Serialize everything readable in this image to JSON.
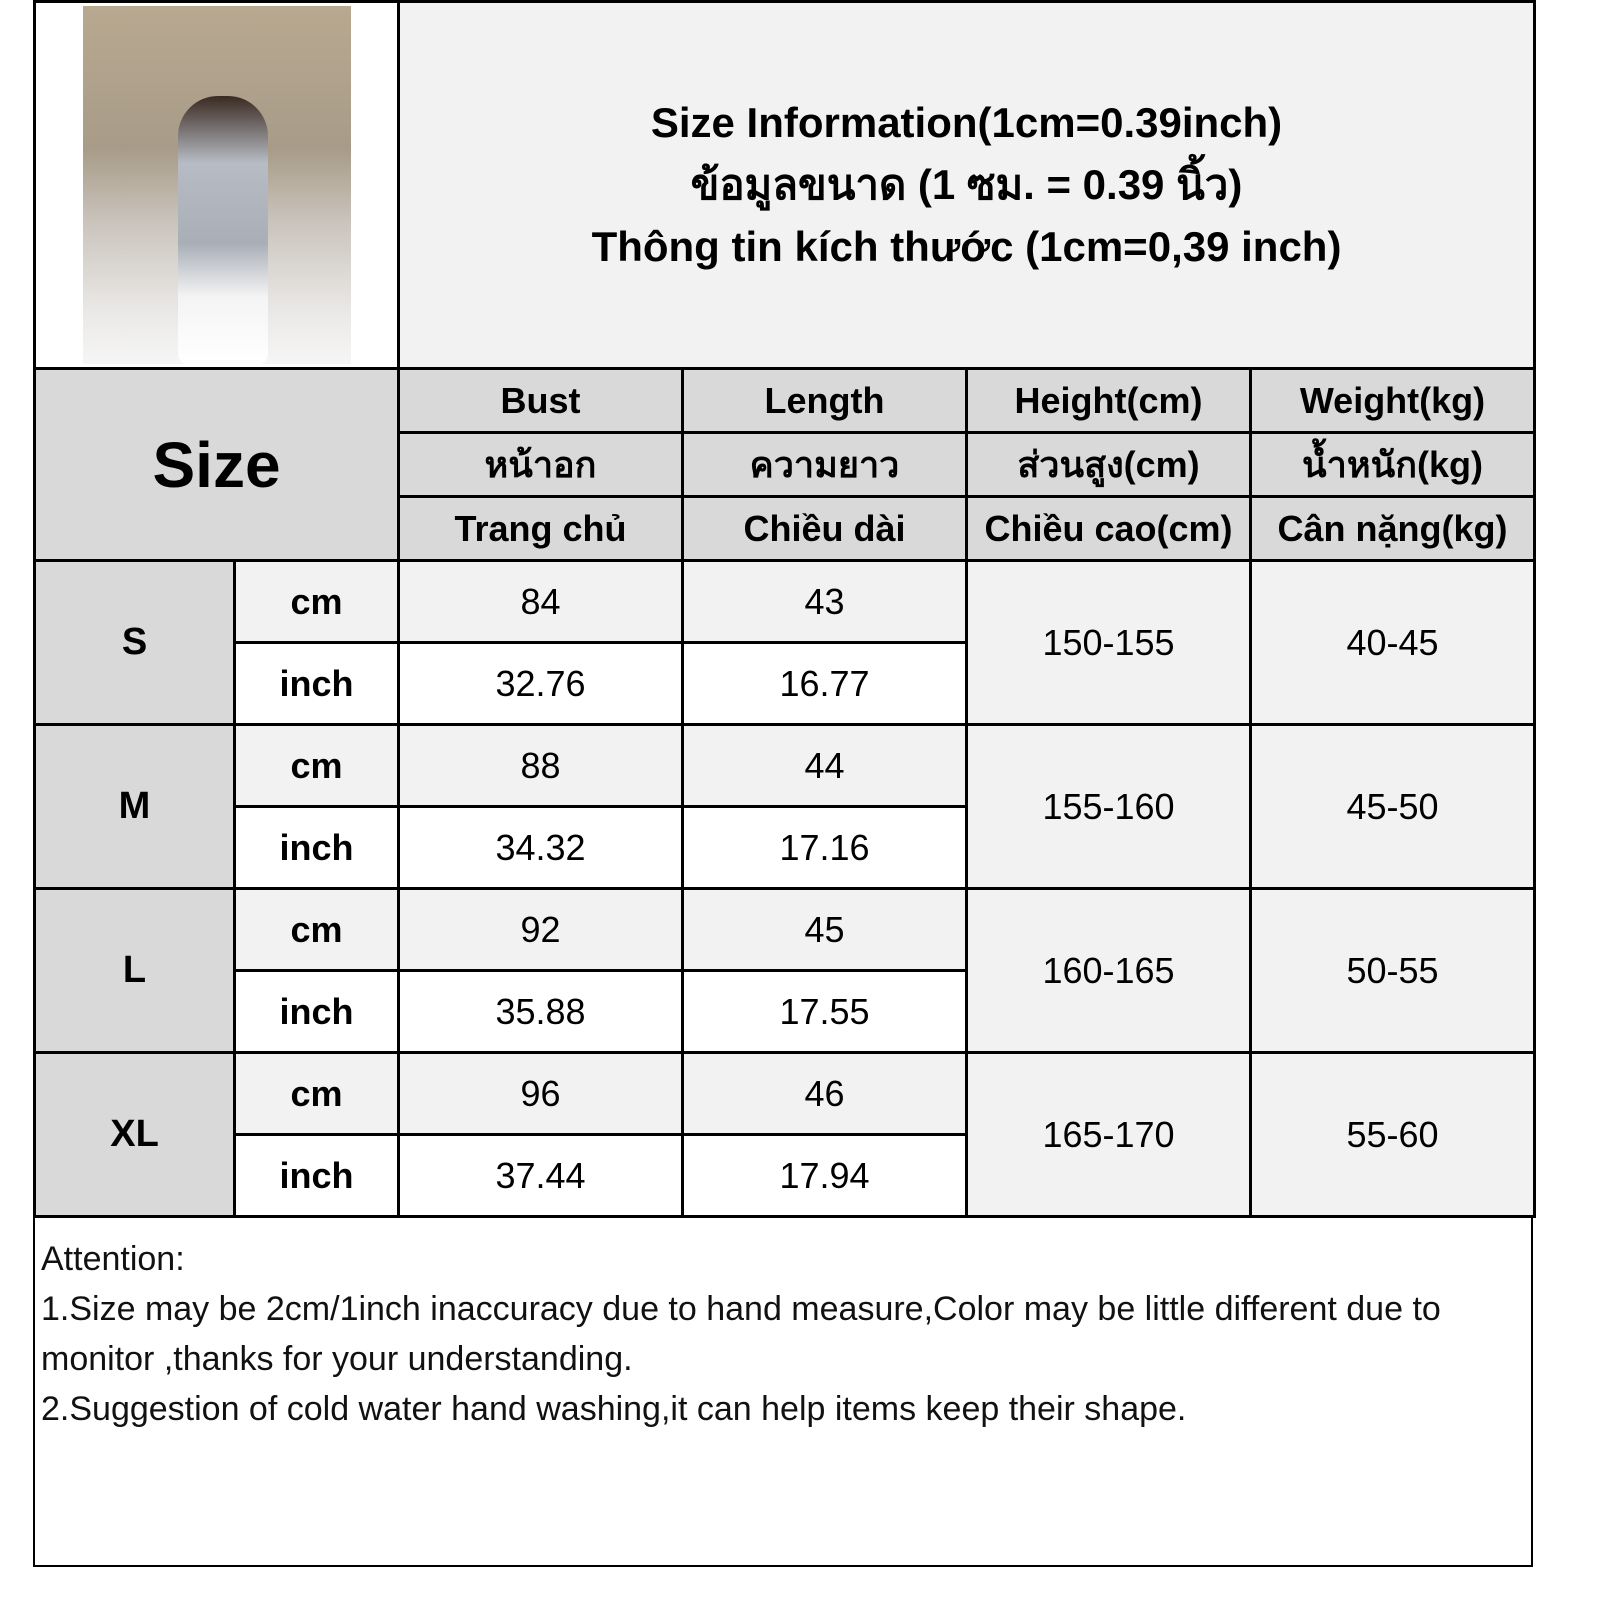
{
  "title": {
    "en": "Size Information(1cm=0.39inch)",
    "th": "ข้อมูลขนาด (1 ซม. = 0.39 นิ้ว)",
    "vi": "Thông tin kích thước (1cm=0,39 inch)"
  },
  "header": {
    "size_label": "Size",
    "columns": [
      {
        "en": "Bust",
        "th": "หน้าอก",
        "vi": "Trang chủ"
      },
      {
        "en": "Length",
        "th": "ความยาว",
        "vi": "Chiều dài"
      },
      {
        "en": "Height(cm)",
        "th": "ส่วนสูง(cm)",
        "vi": "Chiều cao(cm)"
      },
      {
        "en": "Weight(kg)",
        "th": "น้ำหนัก(kg)",
        "vi": "Cân nặng(kg)"
      }
    ]
  },
  "units": {
    "cm": "cm",
    "inch": "inch"
  },
  "rows": [
    {
      "size": "S",
      "bust_cm": "84",
      "length_cm": "43",
      "bust_in": "32.76",
      "length_in": "16.77",
      "height": "150-155",
      "weight": "40-45"
    },
    {
      "size": "M",
      "bust_cm": "88",
      "length_cm": "44",
      "bust_in": "34.32",
      "length_in": "17.16",
      "height": "155-160",
      "weight": "45-50"
    },
    {
      "size": "L",
      "bust_cm": "92",
      "length_cm": "45",
      "bust_in": "35.88",
      "length_in": "17.55",
      "height": "160-165",
      "weight": "50-55"
    },
    {
      "size": "XL",
      "bust_cm": "96",
      "length_cm": "46",
      "bust_in": "37.44",
      "length_in": "17.94",
      "height": "165-170",
      "weight": "55-60"
    }
  ],
  "notes": {
    "heading": "Attention:",
    "line1": "1.Size may be 2cm/1inch inaccuracy due to hand measure,Color may be little different due to monitor ,thanks for your understanding.",
    "line2": "2.Suggestion of cold water hand washing,it can help items keep their shape."
  }
}
